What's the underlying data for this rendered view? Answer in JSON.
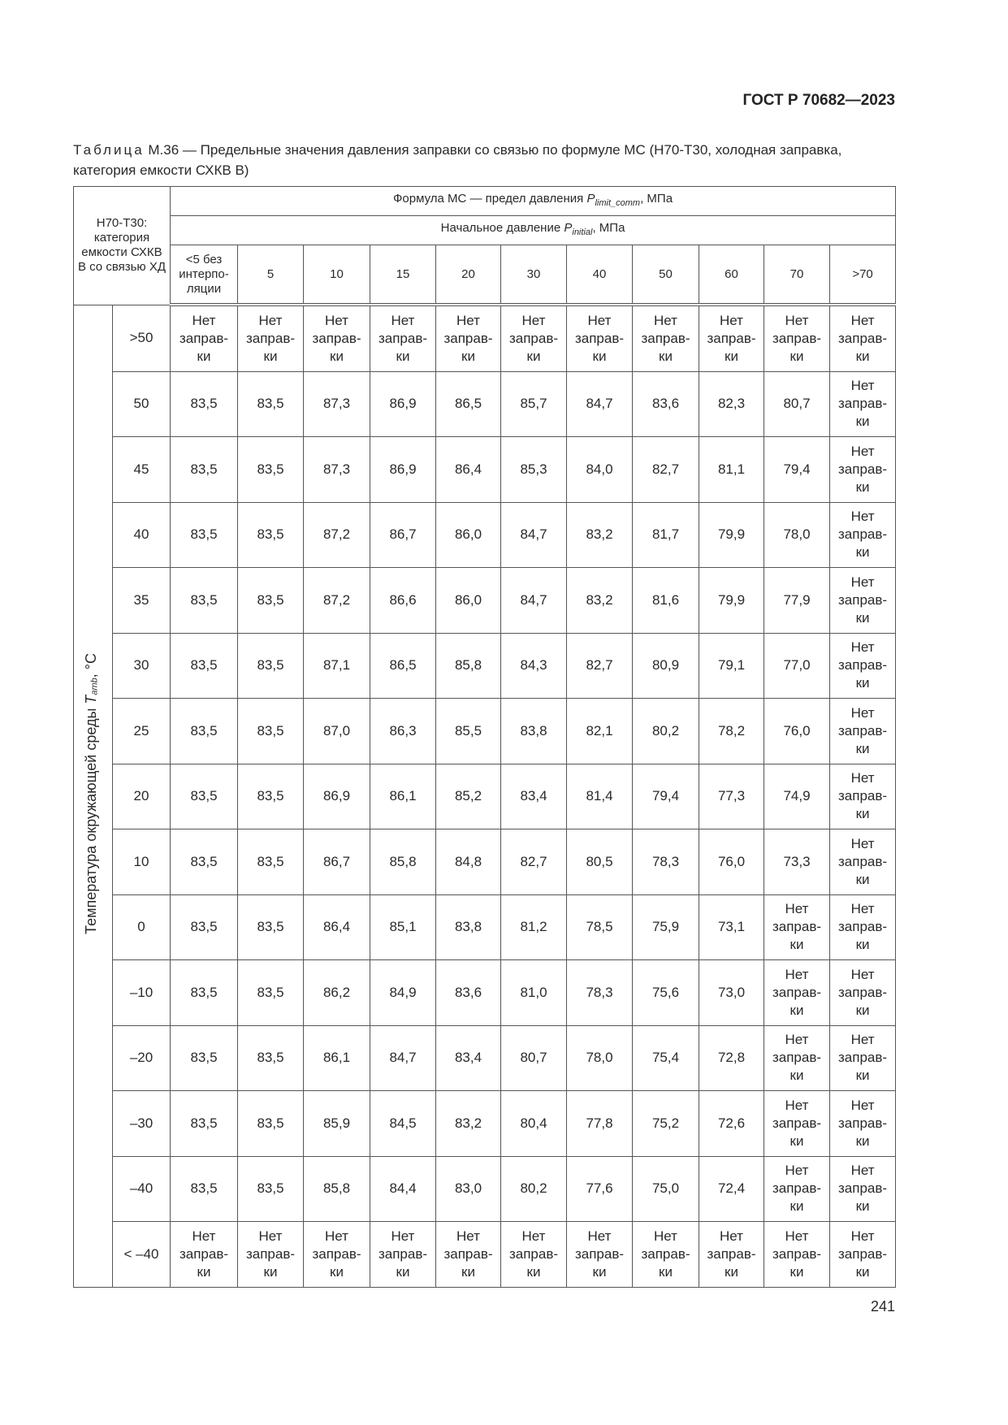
{
  "header": {
    "standard": "ГОСТ Р 70682—2023"
  },
  "caption": {
    "label": "Таблица",
    "text": " М.36 — Предельные значения давления заправки со связью по формуле МС (Н70-Т30, холодная заправка, категория емкости СХКВ В)"
  },
  "table": {
    "corner": "Н70-Т30: категория емкости СХКВ В со связью ХД",
    "group_header": {
      "text": "Формула МС — предел давления ",
      "symbol": "P",
      "sub": "limit_comm",
      "unit": ", МПа"
    },
    "sub_header": {
      "text": "Начальное давление ",
      "symbol": "P",
      "sub": "initial",
      "unit": ", МПа"
    },
    "columns": [
      "<5 без интерпо-ляции",
      "5",
      "10",
      "15",
      "20",
      "30",
      "40",
      "50",
      "60",
      "70",
      ">70"
    ],
    "row_axis": {
      "text": "Температура окружающей среды ",
      "symbol": "T",
      "sub": "amb",
      "unit": ", °C"
    },
    "no_fill": "Нет заправ-ки",
    "rows": [
      {
        "t": ">50",
        "v": [
          "Нет заправ-ки",
          "Нет заправ-ки",
          "Нет заправ-ки",
          "Нет заправ-ки",
          "Нет заправ-ки",
          "Нет заправ-ки",
          "Нет заправ-ки",
          "Нет заправ-ки",
          "Нет заправ-ки",
          "Нет заправ-ки",
          "Нет заправ-ки"
        ]
      },
      {
        "t": "50",
        "v": [
          "83,5",
          "83,5",
          "87,3",
          "86,9",
          "86,5",
          "85,7",
          "84,7",
          "83,6",
          "82,3",
          "80,7",
          "Нет заправ-ки"
        ]
      },
      {
        "t": "45",
        "v": [
          "83,5",
          "83,5",
          "87,3",
          "86,9",
          "86,4",
          "85,3",
          "84,0",
          "82,7",
          "81,1",
          "79,4",
          "Нет заправ-ки"
        ]
      },
      {
        "t": "40",
        "v": [
          "83,5",
          "83,5",
          "87,2",
          "86,7",
          "86,0",
          "84,7",
          "83,2",
          "81,7",
          "79,9",
          "78,0",
          "Нет заправ-ки"
        ]
      },
      {
        "t": "35",
        "v": [
          "83,5",
          "83,5",
          "87,2",
          "86,6",
          "86,0",
          "84,7",
          "83,2",
          "81,6",
          "79,9",
          "77,9",
          "Нет заправ-ки"
        ]
      },
      {
        "t": "30",
        "v": [
          "83,5",
          "83,5",
          "87,1",
          "86,5",
          "85,8",
          "84,3",
          "82,7",
          "80,9",
          "79,1",
          "77,0",
          "Нет заправ-ки"
        ]
      },
      {
        "t": "25",
        "v": [
          "83,5",
          "83,5",
          "87,0",
          "86,3",
          "85,5",
          "83,8",
          "82,1",
          "80,2",
          "78,2",
          "76,0",
          "Нет заправ-ки"
        ]
      },
      {
        "t": "20",
        "v": [
          "83,5",
          "83,5",
          "86,9",
          "86,1",
          "85,2",
          "83,4",
          "81,4",
          "79,4",
          "77,3",
          "74,9",
          "Нет заправ-ки"
        ]
      },
      {
        "t": "10",
        "v": [
          "83,5",
          "83,5",
          "86,7",
          "85,8",
          "84,8",
          "82,7",
          "80,5",
          "78,3",
          "76,0",
          "73,3",
          "Нет заправ-ки"
        ]
      },
      {
        "t": "0",
        "v": [
          "83,5",
          "83,5",
          "86,4",
          "85,1",
          "83,8",
          "81,2",
          "78,5",
          "75,9",
          "73,1",
          "Нет заправ-ки",
          "Нет заправ-ки"
        ]
      },
      {
        "t": "–10",
        "v": [
          "83,5",
          "83,5",
          "86,2",
          "84,9",
          "83,6",
          "81,0",
          "78,3",
          "75,6",
          "73,0",
          "Нет заправ-ки",
          "Нет заправ-ки"
        ]
      },
      {
        "t": "–20",
        "v": [
          "83,5",
          "83,5",
          "86,1",
          "84,7",
          "83,4",
          "80,7",
          "78,0",
          "75,4",
          "72,8",
          "Нет заправ-ки",
          "Нет заправ-ки"
        ]
      },
      {
        "t": "–30",
        "v": [
          "83,5",
          "83,5",
          "85,9",
          "84,5",
          "83,2",
          "80,4",
          "77,8",
          "75,2",
          "72,6",
          "Нет заправ-ки",
          "Нет заправ-ки"
        ]
      },
      {
        "t": "–40",
        "v": [
          "83,5",
          "83,5",
          "85,8",
          "84,4",
          "83,0",
          "80,2",
          "77,6",
          "75,0",
          "72,4",
          "Нет заправ-ки",
          "Нет заправ-ки"
        ]
      },
      {
        "t": "< –40",
        "v": [
          "Нет заправ-ки",
          "Нет заправ-ки",
          "Нет заправ-ки",
          "Нет заправ-ки",
          "Нет заправ-ки",
          "Нет заправ-ки",
          "Нет заправ-ки",
          "Нет заправ-ки",
          "Нет заправ-ки",
          "Нет заправ-ки",
          "Нет заправ-ки"
        ]
      }
    ]
  },
  "footer": {
    "page_number": "241"
  }
}
